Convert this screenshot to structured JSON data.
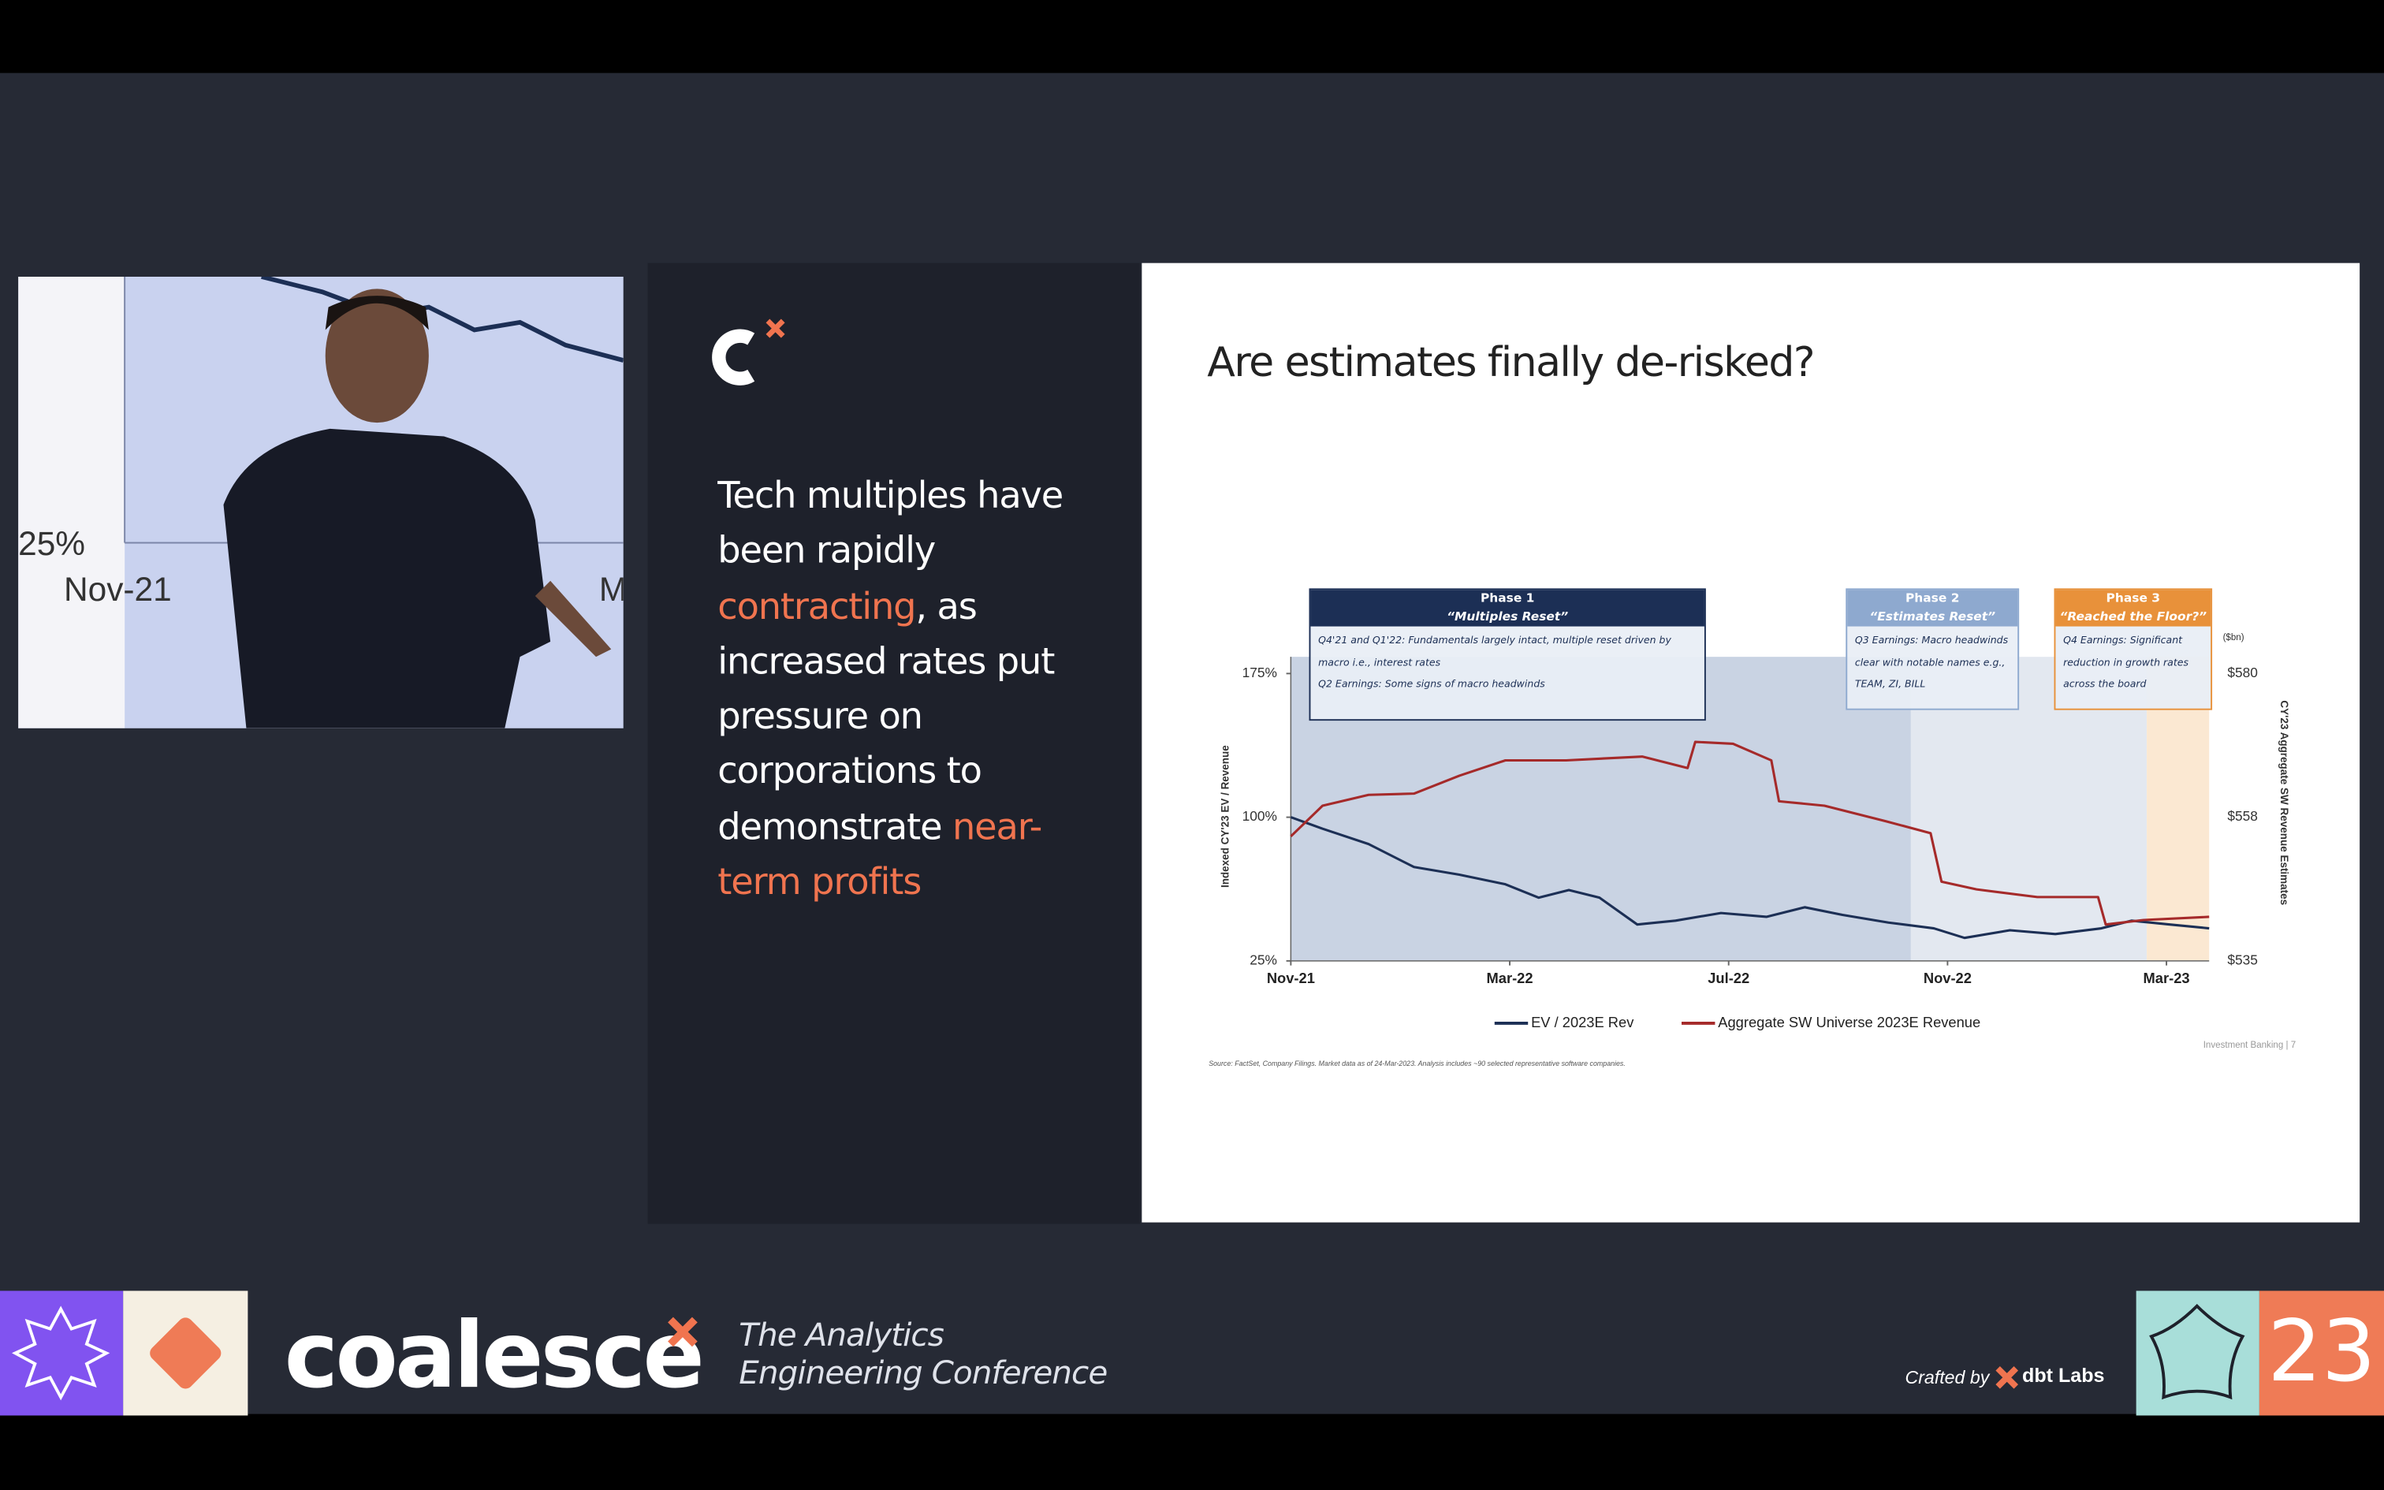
{
  "speaker_video": {
    "labels": [
      "25%",
      "Nov-21",
      "M"
    ]
  },
  "sidebar": {
    "parts": [
      "Tech multiples have been rapidly ",
      "contracting",
      ", as increased rates put pressure on corporations to demonstrate ",
      "near-term profits"
    ]
  },
  "slide": {
    "title": "Are estimates finally de-risked?",
    "source": "Source: FactSet, Company Filings. Market data as of 24-Mar-2023. Analysis includes ~90 selected representative software companies.",
    "footer": "Investment Banking | 7",
    "chart_data": {
      "type": "line",
      "y_label": "Indexed CY'23 EV / Revenue",
      "y2_label": "CY'23 Aggregate SW Revenue Estimates",
      "y2_unit": "($bn)",
      "xlim": [
        0,
        16.78
      ],
      "xticks": [
        {
          "value": 0,
          "label": "Nov-21"
        },
        {
          "value": 4,
          "label": "Mar-22"
        },
        {
          "value": 8,
          "label": "Jul-22"
        },
        {
          "value": 12,
          "label": "Nov-22"
        },
        {
          "value": 16,
          "label": "Mar-23"
        }
      ],
      "ylim": [
        25,
        175
      ],
      "yticks": [
        {
          "value": 25,
          "label": "25%"
        },
        {
          "value": 100,
          "label": "100%"
        },
        {
          "value": 175,
          "label": "175%"
        }
      ],
      "y2lim": [
        535,
        580
      ],
      "y2ticks": [
        {
          "value": 535,
          "label": "$535"
        },
        {
          "value": 557.5,
          "label": "$558"
        },
        {
          "value": 580,
          "label": "$580"
        }
      ],
      "phases": [
        {
          "start": 0,
          "end": 11.33,
          "color": "#c9d3e3",
          "head_color": "#1c2f55",
          "title": "Phase 1",
          "subtitle": "“Multiples Reset”",
          "lines": [
            "Q4'21 and Q1'22: Fundamentals largely intact, multiple reset driven by macro i.e., interest rates",
            "Q2 Earnings: Some signs of macro headwinds"
          ]
        },
        {
          "start": 11.33,
          "end": 15.64,
          "color": "#e3e8f0",
          "head_color": "#8ea9cf",
          "title": "Phase 2",
          "subtitle": "“Estimates Reset”",
          "lines": [
            "Q3 Earnings: Macro headwinds clear with notable names e.g., TEAM, ZI, BILL"
          ]
        },
        {
          "start": 15.64,
          "end": 16.78,
          "color": "#fbe8d2",
          "head_color": "#e8913a",
          "title": "Phase 3",
          "subtitle": "“Reached the Floor?”",
          "lines": [
            "Q4 Earnings: Significant reduction in growth rates across the board"
          ]
        }
      ],
      "series": [
        {
          "name": "EV / 2023E Rev",
          "color": "#1c2f55",
          "x": [
            0,
            0.58,
            1.42,
            2.25,
            3.08,
            3.92,
            4.53,
            5.08,
            5.64,
            6.33,
            7.03,
            7.86,
            8.69,
            9.39,
            10.08,
            10.92,
            11.75,
            12.31,
            13.14,
            13.97,
            14.81,
            15.36,
            16.06,
            16.78
          ],
          "values": [
            100,
            94,
            86,
            74,
            70,
            65,
            58,
            62,
            58,
            44,
            46,
            50,
            48,
            53,
            49,
            45,
            42,
            37,
            41,
            39,
            42,
            46,
            44,
            42
          ]
        },
        {
          "name": "Aggregate SW Universe 2023E Revenue",
          "color": "#a52a2a",
          "axis": "y2",
          "x": [
            0,
            0.58,
            1.42,
            2.25,
            3.08,
            3.92,
            5.03,
            6.42,
            7.25,
            7.39,
            8.08,
            8.78,
            8.92,
            9.75,
            10.86,
            11.69,
            11.89,
            12.53,
            13.64,
            14.75,
            14.89,
            15.58,
            16.78
          ],
          "values": [
            554.5,
            559.3,
            561,
            561.2,
            564,
            566.4,
            566.4,
            567,
            565.2,
            569.3,
            569,
            566.4,
            560,
            559.3,
            556.9,
            555,
            547.4,
            546.2,
            545,
            545,
            540.7,
            541.4,
            541.9
          ]
        }
      ]
    }
  },
  "branding": {
    "name": "coalesce",
    "tagline": [
      "The Analytics",
      "Engineering Conference"
    ],
    "crafted": "Crafted by",
    "company": "dbt Labs",
    "year": "23"
  }
}
